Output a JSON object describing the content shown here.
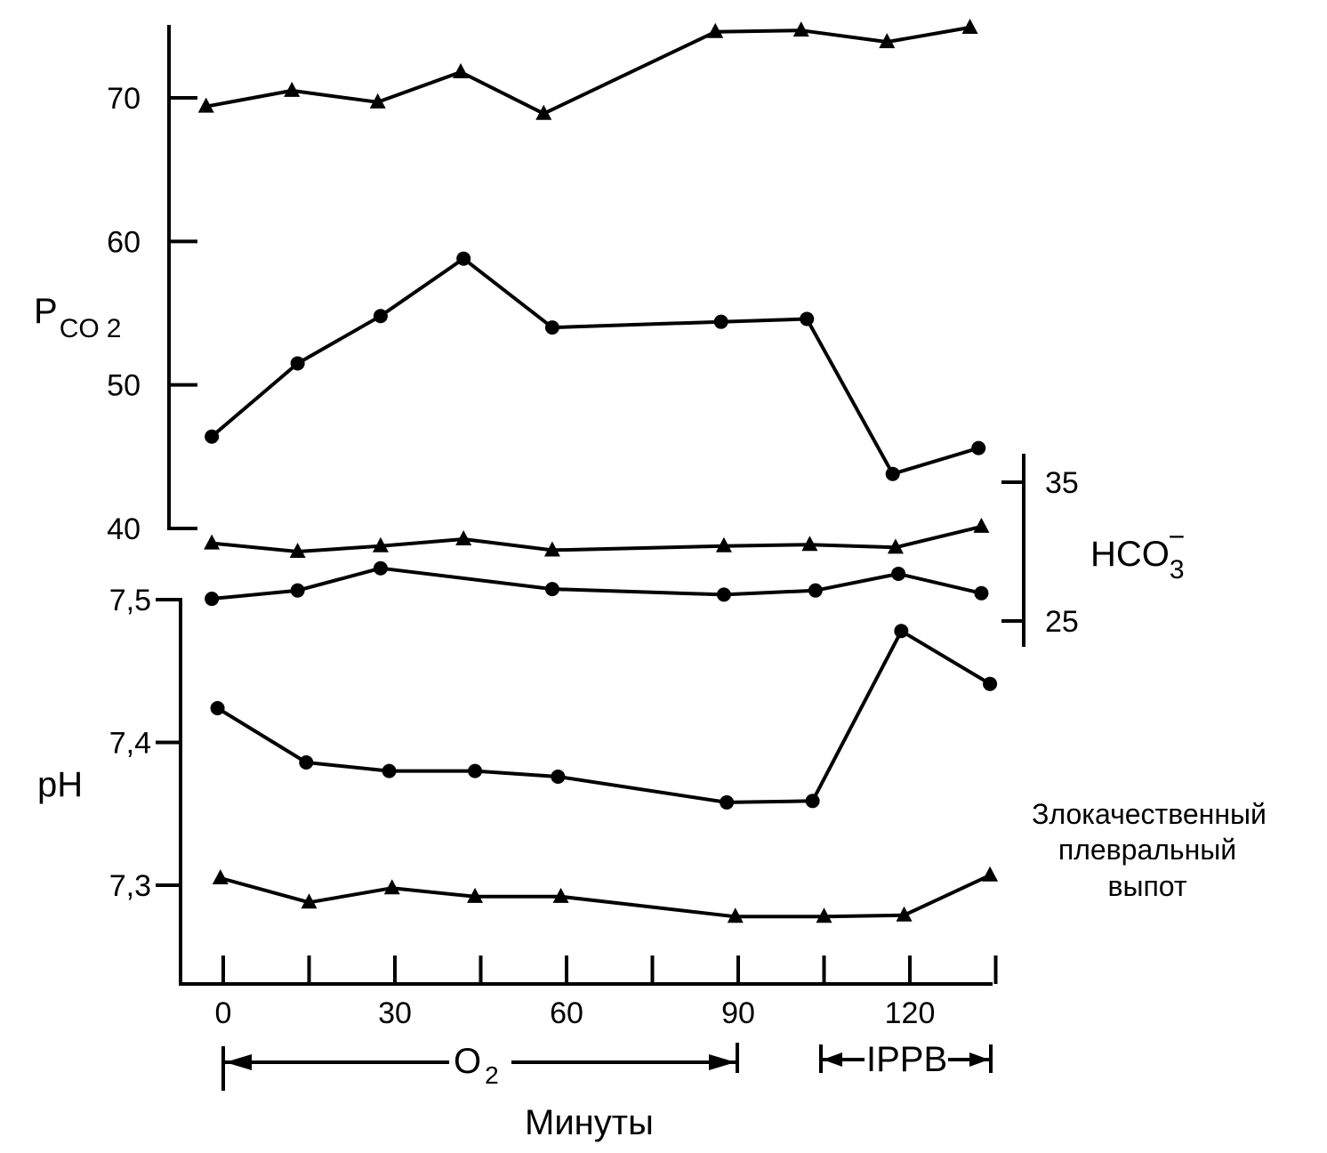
{
  "chart_data": {
    "type": "line",
    "x_ticks": [
      0,
      30,
      60,
      90,
      120
    ],
    "x_tick_labels": [
      "0",
      "30",
      "60",
      "90",
      "120"
    ],
    "xlabel": "Минуты",
    "pco2_axis": {
      "label_main": "P",
      "label_sub": "CO",
      "label_subsub": "2",
      "ticks": [
        40,
        50,
        60,
        70
      ],
      "tick_labels": [
        "40",
        "50",
        "60",
        "70"
      ],
      "range": [
        40,
        76
      ]
    },
    "ph_axis": {
      "label": "pH",
      "ticks": [
        7.3,
        7.4,
        7.5
      ],
      "tick_labels": [
        "7,3",
        "7,4",
        "7,5"
      ],
      "range": [
        7.233,
        7.5
      ]
    },
    "hco3_axis": {
      "label_main": "HCO",
      "label_sub": "3",
      "label_sup": "−",
      "ticks": [
        25,
        35
      ],
      "tick_labels": [
        "25",
        "35"
      ],
      "range": [
        23,
        37
      ]
    },
    "series": [
      {
        "axis": "pco2",
        "marker": "triangle",
        "points": [
          [
            -3,
            69.4
          ],
          [
            12,
            70.5
          ],
          [
            27,
            69.7
          ],
          [
            41.5,
            71.8
          ],
          [
            56,
            68.9
          ],
          [
            86,
            74.6
          ],
          [
            101,
            74.7
          ],
          [
            116,
            73.9
          ],
          [
            130.5,
            74.9
          ]
        ]
      },
      {
        "axis": "pco2",
        "marker": "circle",
        "points": [
          [
            -2,
            46.4
          ],
          [
            13,
            51.5
          ],
          [
            27.5,
            54.8
          ],
          [
            42,
            58.8
          ],
          [
            57.5,
            54.0
          ],
          [
            87,
            54.4
          ],
          [
            102,
            54.6
          ],
          [
            117,
            43.8
          ],
          [
            132,
            45.6
          ]
        ]
      },
      {
        "axis": "hco3",
        "marker": "triangle",
        "points": [
          [
            -2,
            30.6
          ],
          [
            13,
            30.0
          ],
          [
            27.5,
            30.4
          ],
          [
            42,
            30.9
          ],
          [
            57.5,
            30.1
          ],
          [
            87.5,
            30.4
          ],
          [
            102.5,
            30.5
          ],
          [
            117.5,
            30.3
          ],
          [
            132.5,
            31.8
          ]
        ]
      },
      {
        "axis": "hco3",
        "marker": "circle",
        "points": [
          [
            -2,
            26.6
          ],
          [
            13,
            27.2
          ],
          [
            27.5,
            28.8
          ],
          [
            57.5,
            27.3
          ],
          [
            87.5,
            26.9
          ],
          [
            103.5,
            27.2
          ],
          [
            118,
            28.4
          ],
          [
            132.5,
            27.0
          ]
        ]
      },
      {
        "axis": "ph",
        "marker": "circle",
        "points": [
          [
            -1,
            7.424
          ],
          [
            14.5,
            7.386
          ],
          [
            29,
            7.38
          ],
          [
            44,
            7.38
          ],
          [
            58.5,
            7.376
          ],
          [
            88,
            7.358
          ],
          [
            103,
            7.359
          ],
          [
            118.5,
            7.478
          ],
          [
            134,
            7.441
          ]
        ]
      },
      {
        "axis": "ph",
        "marker": "triangle",
        "points": [
          [
            -0.5,
            7.305
          ],
          [
            15,
            7.288
          ],
          [
            29.5,
            7.298
          ],
          [
            44,
            7.292
          ],
          [
            59,
            7.292
          ],
          [
            89.5,
            7.278
          ],
          [
            105,
            7.278
          ],
          [
            119,
            7.279
          ],
          [
            134,
            7.307
          ]
        ]
      }
    ],
    "annotations": {
      "o2_label": "O",
      "o2_sub": "2",
      "ippb_label": "IPPB",
      "effusion_lines": [
        "Злокачественный",
        "плевральный",
        "выпот"
      ]
    }
  }
}
